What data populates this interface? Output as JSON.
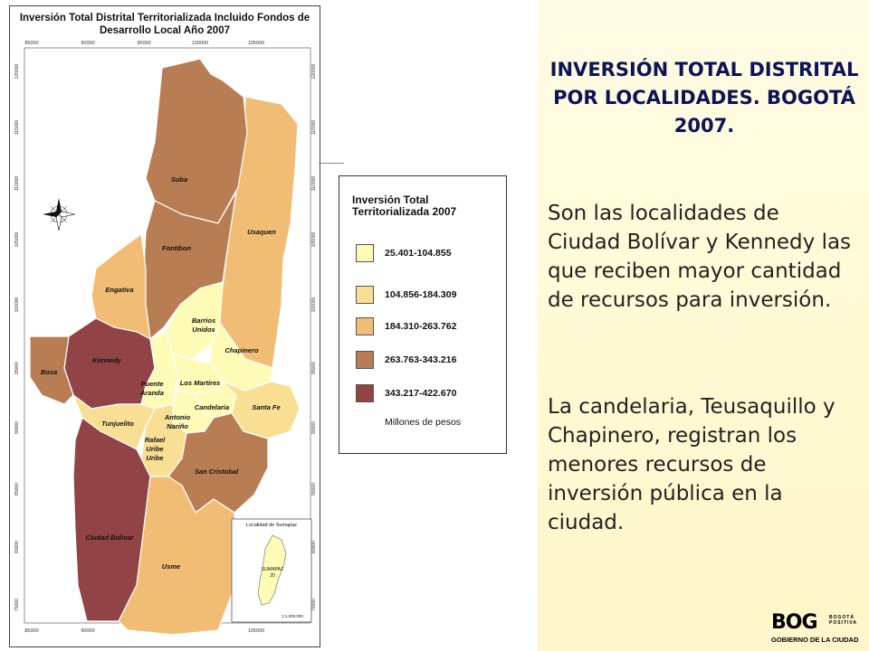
{
  "map": {
    "title_line1": "Inversión Total Distrital Territorializada Incluido Fondos de",
    "title_line2": "Desarrollo Local Año 2007",
    "x_ticks": [
      "85000",
      "90000",
      "95000",
      "100000",
      "105000"
    ],
    "y_ticks": [
      "120000",
      "115000",
      "110000",
      "105000",
      "100000",
      "95000",
      "90000",
      "85000",
      "80000",
      "75000"
    ],
    "localities": [
      {
        "name": "Suba",
        "range": "263.763-343.216"
      },
      {
        "name": "Usaquen",
        "range": "184.310-263.762"
      },
      {
        "name": "Fontibon",
        "range": "263.763-343.216"
      },
      {
        "name": "Engativa",
        "range": "184.310-263.762"
      },
      {
        "name": "Barrios Unidos",
        "range": "25.401-104.855"
      },
      {
        "name": "Chapinero",
        "range": "25.401-104.855"
      },
      {
        "name": "Kennedy",
        "range": "343.217-422.670"
      },
      {
        "name": "Bosa",
        "range": "263.763-343.216"
      },
      {
        "name": "Puente Aranda",
        "range": "25.401-104.855"
      },
      {
        "name": "Los Martires",
        "range": "25.401-104.855"
      },
      {
        "name": "Candelaria",
        "range": "25.401-104.855"
      },
      {
        "name": "Santa Fe",
        "range": "104.856-184.309"
      },
      {
        "name": "Antonio Nariño",
        "range": "25.401-104.855"
      },
      {
        "name": "Tunjuelito",
        "range": "104.856-184.309"
      },
      {
        "name": "Rafael Uribe Uribe",
        "range": "104.856-184.309"
      },
      {
        "name": "San Cristobal",
        "range": "263.763-343.216"
      },
      {
        "name": "Ciudad Bolivar",
        "range": "343.217-422.670"
      },
      {
        "name": "Usme",
        "range": "184.310-263.762"
      }
    ],
    "inset_title": "Localidad de Sumapaz",
    "inset_label_1": "SUMAPAZ",
    "inset_label_2": "20",
    "inset_scale": "1:1.000.000"
  },
  "legend": {
    "title_line1": "Inversión Total",
    "title_line2": "Territorializada 2007",
    "items": [
      {
        "label": "25.401-104.855",
        "color": "#fdfbb6"
      },
      {
        "label": "104.856-184.309",
        "color": "#f8df94"
      },
      {
        "label": "184.310-263.762",
        "color": "#f1bd74"
      },
      {
        "label": "263.763-343.216",
        "color": "#b97d54"
      },
      {
        "label": "343.217-422.670",
        "color": "#924346"
      }
    ],
    "unit": "Millones de pesos"
  },
  "slide": {
    "title_line1": "INVERSIÓN TOTAL DISTRITAL",
    "title_line2": "POR LOCALIDADES. BOGOTÁ",
    "title_line3": "2007.",
    "paragraph_1": "Son las localidades de Ciudad Bolívar y Kennedy las que reciben mayor cantidad de recursos para inversión.",
    "paragraph_2": "La candelaria, Teusaquillo y Chapinero, registran los menores recursos de inversión pública en la ciudad."
  },
  "logo": {
    "mark": "BOG",
    "tagline_1": "BOGOTÁ",
    "tagline_2": "POSITIVA",
    "subtitle": "GOBIERNO DE LA CIUDAD"
  },
  "colors": {
    "title_text": "#0c1456",
    "text_panel_bg": "#fffbd8",
    "logo_yellow": "#ffe100"
  }
}
